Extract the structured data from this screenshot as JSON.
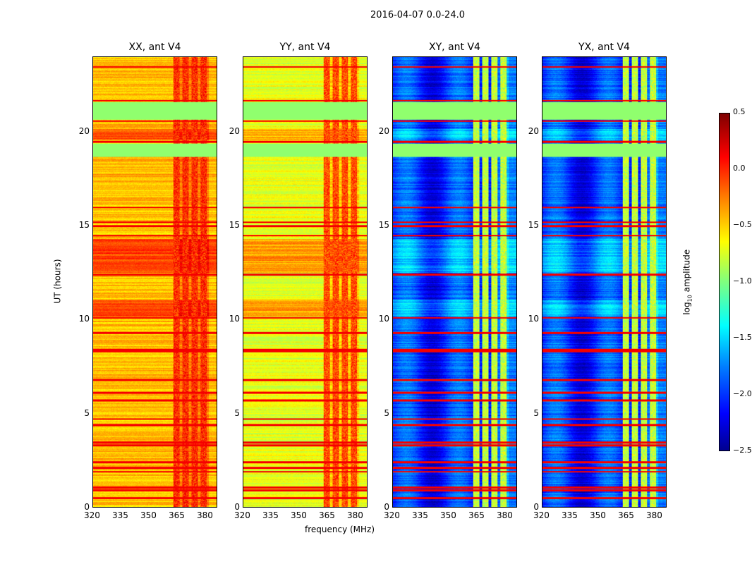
{
  "suptitle": "2016-04-07 0.0-24.0",
  "chart_data": {
    "type": "heatmap",
    "xlabel": "frequency (MHz)",
    "ylabel": "UT (hours)",
    "xlim": [
      320,
      386.4
    ],
    "ylim": [
      0,
      24
    ],
    "xticks": [
      "320",
      "335",
      "350",
      "365",
      "380"
    ],
    "yticks": [
      "0",
      "5",
      "10",
      "15",
      "20"
    ],
    "colorbar": {
      "label": "log10 amplitude",
      "label_main": "log",
      "label_sub": "10",
      "label_rest": " amplitude",
      "range": [
        -2.5,
        0.5
      ],
      "ticks": [
        "0.5",
        "0.0",
        "−0.5",
        "−1.0",
        "−1.5",
        "−2.0",
        "−2.5"
      ],
      "colormap": "jet"
    },
    "panels": [
      {
        "title": "XX, ant V4",
        "base_level": -0.45,
        "band_level": 0.0
      },
      {
        "title": "YY, ant V4",
        "base_level": -0.7,
        "band_level": -0.1
      },
      {
        "title": "XY, ant V4",
        "base_level": -2.0,
        "band_level": -0.8
      },
      {
        "title": "YX, ant V4",
        "base_level": -2.0,
        "band_level": -0.8
      }
    ],
    "rfi_band_mhz": [
      363,
      382
    ],
    "flagged_rows_ut": [
      0.5,
      0.9,
      1.05,
      1.9,
      2.1,
      2.4,
      3.3,
      3.45,
      4.4,
      4.7,
      5.7,
      6.1,
      6.8,
      8.3,
      8.4,
      9.3,
      10.1,
      12.4,
      14.5,
      15.0,
      15.2,
      16.0,
      19.5,
      20.6,
      21.7,
      23.5
    ],
    "flagged_blocks_ut": [
      [
        18.7,
        19.4
      ],
      [
        20.7,
        21.6
      ]
    ],
    "bright_blocks_ut": [
      [
        19.6,
        20.2
      ],
      [
        12.5,
        14.3
      ],
      [
        10.2,
        11.1
      ]
    ]
  }
}
